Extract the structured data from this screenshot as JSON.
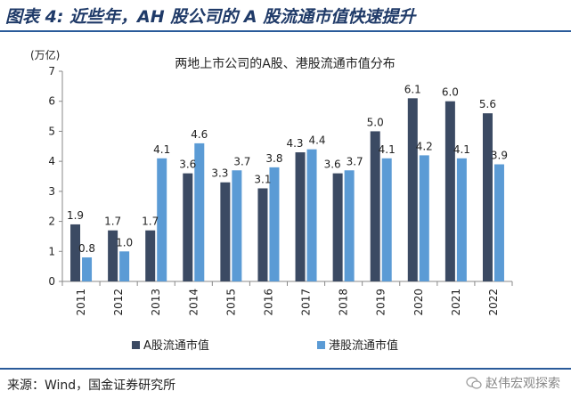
{
  "figure": {
    "title": "图表 4:  近些年，AH 股公司的 A 股流通市值快速提升",
    "source": "来源：Wind，国金证券研究所",
    "watermark": "赵伟宏观探索"
  },
  "colors": {
    "rule": "#2a5b9a",
    "series_a": "#3b4a63",
    "series_h": "#5b9bd5"
  },
  "chart_data": {
    "type": "bar",
    "title": "两地上市公司的A股、港股流通市值分布",
    "unit_label": "(万亿)",
    "categories": [
      "2011",
      "2012",
      "2013",
      "2014",
      "2015",
      "2016",
      "2017",
      "2018",
      "2019",
      "2020",
      "2021",
      "2022"
    ],
    "series": [
      {
        "name": "A股流通市值",
        "values": [
          1.9,
          1.7,
          1.7,
          3.6,
          3.3,
          3.1,
          4.3,
          3.6,
          5.0,
          6.1,
          6.0,
          5.6
        ],
        "labels": [
          "1.9",
          "1.7",
          "1.7",
          "3.6",
          "3.3",
          "3.1",
          "4.3",
          "3.6",
          "5.0",
          "6.1",
          "6.0",
          "5.6"
        ]
      },
      {
        "name": "港股流通市值",
        "values": [
          0.8,
          1.0,
          4.1,
          4.6,
          3.7,
          3.8,
          4.4,
          3.7,
          4.1,
          4.2,
          4.1,
          3.9
        ],
        "labels": [
          "0.8",
          "1.0",
          "4.1",
          "4.6",
          "3.7",
          "3.8",
          "4.4",
          "3.7",
          "4.1",
          "4.2",
          "4.1",
          "3.9"
        ]
      }
    ],
    "ylim": [
      0,
      7
    ],
    "yticks": [
      "0",
      "1",
      "2",
      "3",
      "4",
      "5",
      "6",
      "7"
    ],
    "legend_position": "bottom",
    "grid": false
  }
}
